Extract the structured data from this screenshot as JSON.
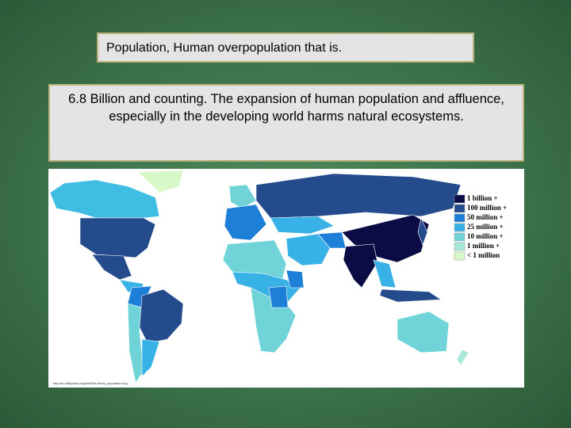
{
  "header": {
    "title": "Population, Human overpopulation that is."
  },
  "body": {
    "text": "6.8 Billion and counting. The expansion of human population and affluence, especially in the developing world harms natural ecosystems."
  },
  "map": {
    "legend": [
      "1 billion +",
      "100 million +",
      "50 million +",
      "25 million +",
      "10 million +",
      "1 million +",
      "< 1 million"
    ],
    "legend_colors": [
      "#0b0b45",
      "#244c8c",
      "#1e7fd8",
      "#38b1e6",
      "#6fd3d8",
      "#a8e8d8",
      "#d8f8c8"
    ],
    "source": "http://en.wikipedia.org/wiki/File:World_population.svg"
  }
}
